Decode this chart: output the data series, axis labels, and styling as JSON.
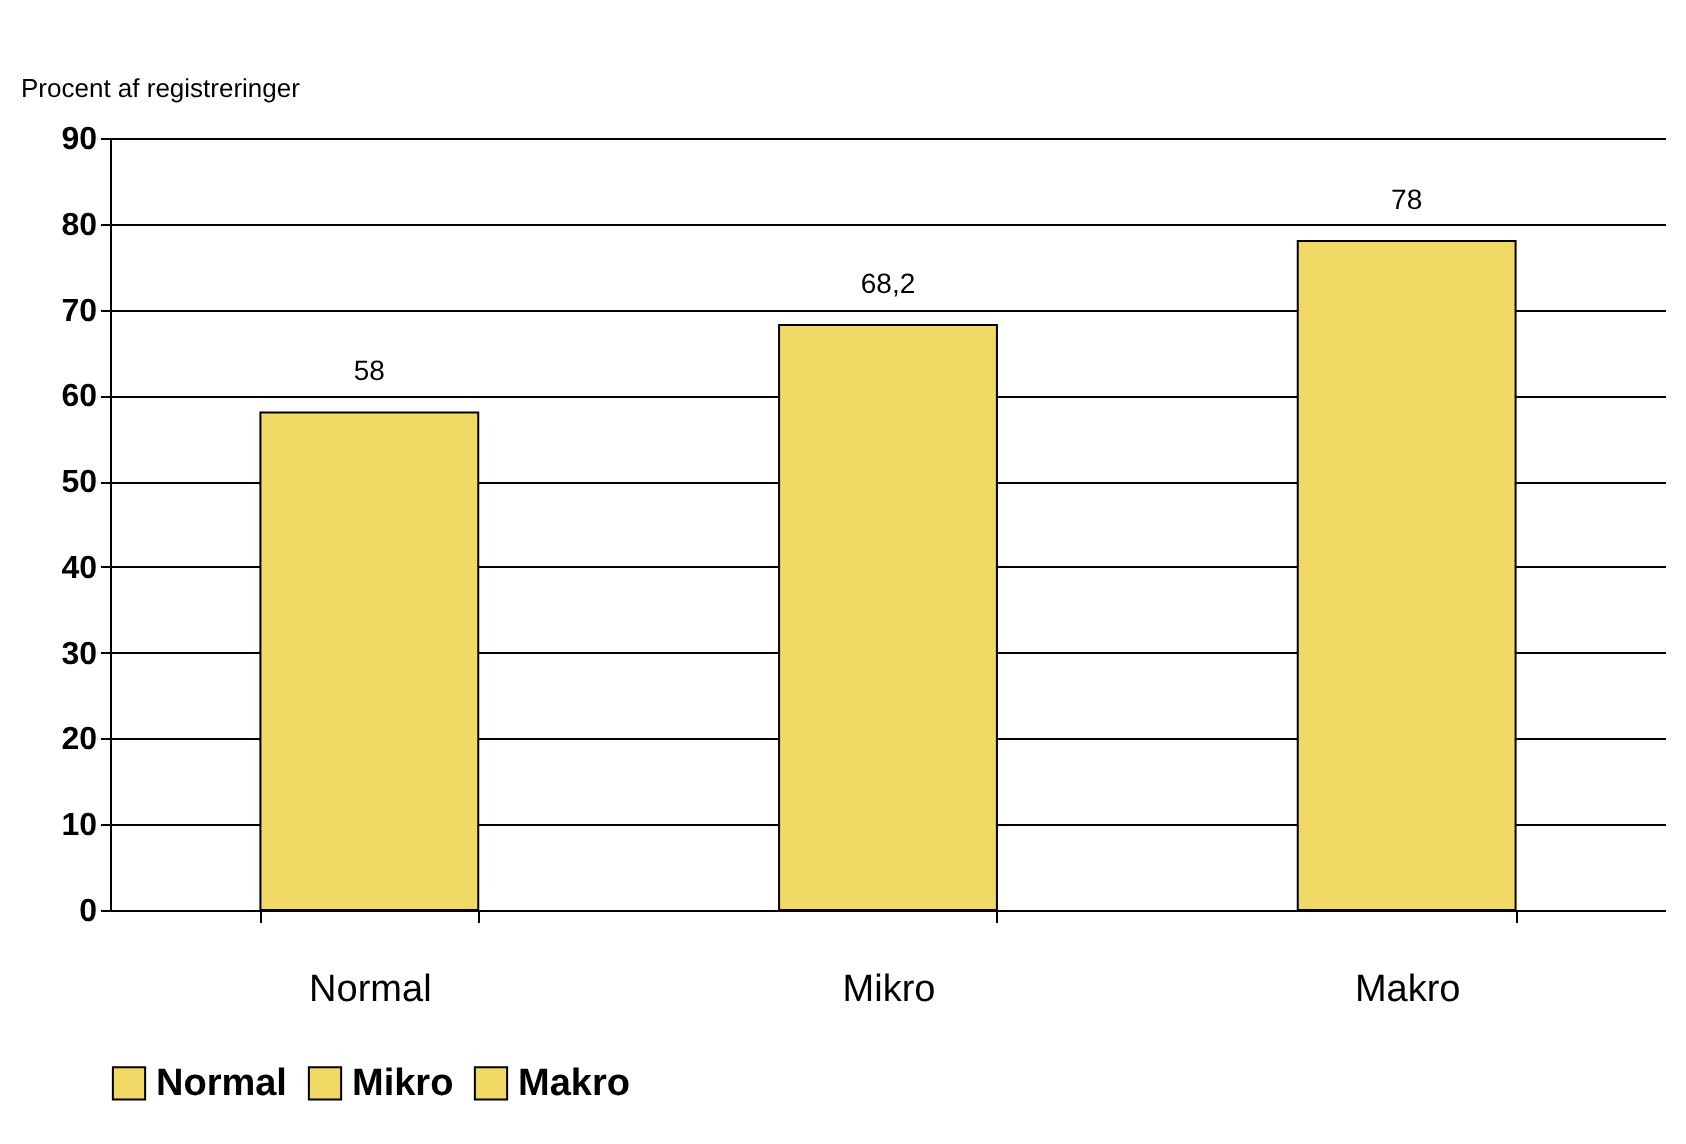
{
  "chart_data": {
    "type": "bar",
    "ylabel": "Procent af registreringer",
    "categories": [
      "Normal",
      "Mikro",
      "Makro"
    ],
    "series": [
      {
        "name": "Normal",
        "color": "#f2d864",
        "values": [
          58,
          null,
          null
        ],
        "value_labels": [
          "58",
          null,
          null
        ]
      },
      {
        "name": "Mikro",
        "color": "#f2d864",
        "values": [
          null,
          68.2,
          null
        ],
        "value_labels": [
          null,
          "68,2",
          null
        ]
      },
      {
        "name": "Makro",
        "color": "#f2d864",
        "values": [
          null,
          null,
          78
        ],
        "value_labels": [
          null,
          null,
          "78"
        ]
      }
    ],
    "ylim": [
      0,
      90
    ],
    "yticks": [
      0,
      10,
      20,
      30,
      40,
      50,
      60,
      70,
      80,
      90
    ],
    "grid": "y",
    "legend": "bottom"
  }
}
